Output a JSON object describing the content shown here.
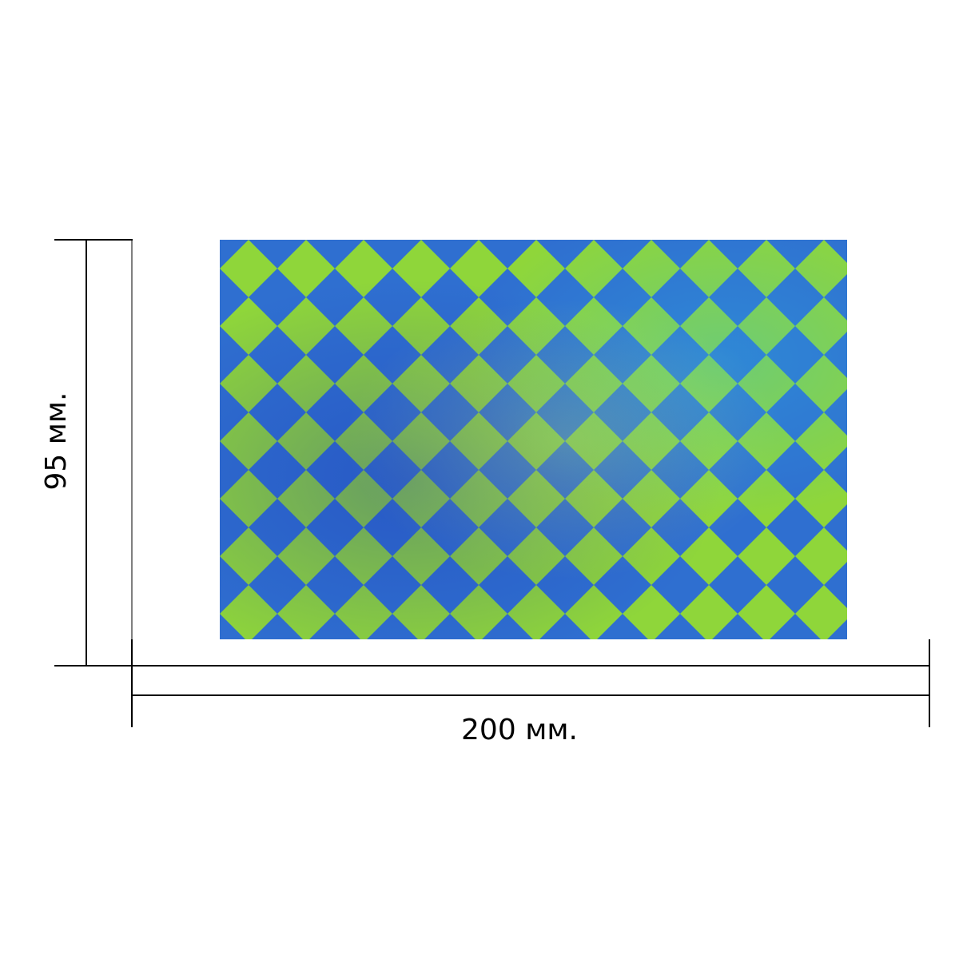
{
  "dimensions": {
    "height_label": "95 мм.",
    "width_label": "200 мм."
  }
}
